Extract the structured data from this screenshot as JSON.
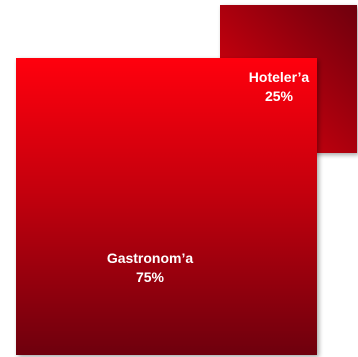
{
  "chart_data": {
    "type": "area",
    "series": [
      {
        "name": "Hoteler’a",
        "value": 25,
        "value_label": "25%",
        "color": "#e8000a",
        "color_dark": "#6e0008"
      },
      {
        "name": "Gastronom’a",
        "value": 75,
        "value_label": "75%",
        "color": "#ff0010",
        "color_dark": "#6e0008"
      }
    ],
    "title": "",
    "grid": false,
    "legend": "none"
  }
}
